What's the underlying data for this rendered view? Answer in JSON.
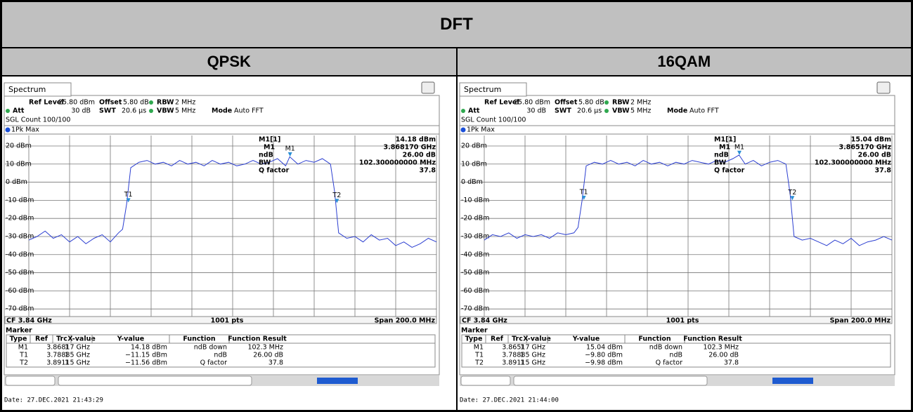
{
  "header": {
    "title": "DFT",
    "columns": [
      "QPSK",
      "16QAM"
    ]
  },
  "panels": [
    {
      "tab": "Spectrum",
      "settings": [
        [
          "Ref Level",
          "25.80 dBm"
        ],
        [
          "Offset",
          "5.80 dB"
        ],
        [
          "RBW",
          "2 MHz"
        ],
        [
          "Att",
          "30 dB"
        ],
        [
          "SWT",
          "20.6 µs"
        ],
        [
          "VBW",
          "5 MHz"
        ],
        [
          "Mode",
          "Auto FFT"
        ]
      ],
      "count": "SGL Count 100/100",
      "trace_label": "1Pk Max",
      "ylim": [
        -74.2,
        25.8
      ],
      "yticks": [
        {
          "value": 20,
          "label": "20 dBm"
        },
        {
          "value": 10,
          "label": "10 dBm"
        },
        {
          "value": 0,
          "label": "0 dBm"
        },
        {
          "value": -10,
          "label": "-10 dBm"
        },
        {
          "value": -20,
          "label": "-20 dBm"
        },
        {
          "value": -30,
          "label": "-30 dBm"
        },
        {
          "value": -40,
          "label": "-40 dBm"
        },
        {
          "value": -50,
          "label": "-50 dBm"
        },
        {
          "value": -60,
          "label": "-60 dBm"
        },
        {
          "value": -70,
          "label": "-70 dBm"
        }
      ],
      "xlim": [
        3.74,
        3.94
      ],
      "xticks": [
        3.74,
        3.76,
        3.78,
        3.8,
        3.82,
        3.84,
        3.86,
        3.88,
        3.9,
        3.92,
        3.94
      ],
      "trace": {
        "x": [
          3.74,
          3.744,
          3.748,
          3.752,
          3.756,
          3.76,
          3.764,
          3.768,
          3.772,
          3.776,
          3.78,
          3.784,
          3.786,
          3.788,
          3.79,
          3.794,
          3.798,
          3.802,
          3.806,
          3.81,
          3.814,
          3.818,
          3.822,
          3.826,
          3.83,
          3.834,
          3.838,
          3.842,
          3.846,
          3.85,
          3.854,
          3.858,
          3.862,
          3.866,
          3.868,
          3.872,
          3.876,
          3.88,
          3.884,
          3.888,
          3.89,
          3.892,
          3.896,
          3.9,
          3.904,
          3.908,
          3.912,
          3.916,
          3.92,
          3.924,
          3.928,
          3.932,
          3.936,
          3.94
        ],
        "values": [
          -32,
          -30,
          -27,
          -31,
          -29,
          -33,
          -30,
          -34,
          -31,
          -29,
          -33,
          -28,
          -26,
          -12,
          8,
          11,
          12,
          10,
          11,
          9,
          12,
          10,
          11,
          9,
          12,
          10,
          11,
          9,
          10,
          12,
          10,
          11,
          13,
          9,
          14,
          10,
          12,
          11,
          13,
          10,
          -5,
          -28,
          -31,
          -30,
          -33,
          -29,
          -32,
          -31,
          -35,
          -33,
          -36,
          -34,
          -31,
          -33
        ]
      },
      "markers": [
        {
          "label": "M1",
          "x": 3.86817,
          "y": 14.18
        },
        {
          "label": "T1",
          "x": 3.78885,
          "y": -11.15
        },
        {
          "label": "T2",
          "x": 3.89115,
          "y": -11.56
        }
      ],
      "marker_info": [
        [
          "M1[1]",
          "14.18 dBm"
        ],
        [
          "M1",
          "3.868170 GHz"
        ],
        [
          "ndB",
          "26.00 dB"
        ],
        [
          "BW",
          "102.300000000 MHz"
        ],
        [
          "Q factor",
          "37.8"
        ]
      ],
      "footer": [
        "CF 3.84 GHz",
        "1001 pts",
        "Span 200.0 MHz"
      ],
      "marker_table": {
        "title": "Marker",
        "headers": [
          "Type",
          "Ref",
          "Trc",
          "X-value",
          "Y-value",
          "Function",
          "Function Result"
        ],
        "rows": [
          [
            "M1",
            "",
            "1",
            "3.86817 GHz",
            "14.18 dBm",
            "ndB down",
            "102.3 MHz"
          ],
          [
            "T1",
            "",
            "1",
            "3.78885 GHz",
            "−11.15 dBm",
            "ndB",
            "26.00 dB"
          ],
          [
            "T2",
            "",
            "1",
            "3.89115 GHz",
            "−11.56 dBm",
            "Q factor",
            "37.8"
          ]
        ]
      },
      "date": "Date: 27.DEC.2021  21:43:29"
    },
    {
      "tab": "Spectrum",
      "settings": [
        [
          "Ref Level",
          "25.80 dBm"
        ],
        [
          "Offset",
          "5.80 dB"
        ],
        [
          "RBW",
          "2 MHz"
        ],
        [
          "Att",
          "30 dB"
        ],
        [
          "SWT",
          "20.6 µs"
        ],
        [
          "VBW",
          "5 MHz"
        ],
        [
          "Mode",
          "Auto FFT"
        ]
      ],
      "count": "SGL Count 100/100",
      "trace_label": "1Pk Max",
      "ylim": [
        -74.2,
        25.8
      ],
      "yticks": [
        {
          "value": 20,
          "label": "20 dBm"
        },
        {
          "value": 10,
          "label": "10 dBm"
        },
        {
          "value": 0,
          "label": "0 dBm"
        },
        {
          "value": -10,
          "label": "-10 dBm"
        },
        {
          "value": -20,
          "label": "-20 dBm"
        },
        {
          "value": -30,
          "label": "-30 dBm"
        },
        {
          "value": -40,
          "label": "-40 dBm"
        },
        {
          "value": -50,
          "label": "-50 dBm"
        },
        {
          "value": -60,
          "label": "-60 dBm"
        },
        {
          "value": -70,
          "label": "-70 dBm"
        }
      ],
      "xlim": [
        3.74,
        3.94
      ],
      "xticks": [
        3.74,
        3.76,
        3.78,
        3.8,
        3.82,
        3.84,
        3.86,
        3.88,
        3.9,
        3.92,
        3.94
      ],
      "trace": {
        "x": [
          3.74,
          3.744,
          3.748,
          3.752,
          3.756,
          3.76,
          3.764,
          3.768,
          3.772,
          3.776,
          3.78,
          3.784,
          3.786,
          3.788,
          3.79,
          3.794,
          3.798,
          3.802,
          3.806,
          3.81,
          3.814,
          3.818,
          3.822,
          3.826,
          3.83,
          3.834,
          3.838,
          3.842,
          3.846,
          3.85,
          3.854,
          3.858,
          3.862,
          3.865,
          3.868,
          3.872,
          3.876,
          3.88,
          3.884,
          3.888,
          3.89,
          3.892,
          3.896,
          3.9,
          3.904,
          3.908,
          3.912,
          3.916,
          3.92,
          3.924,
          3.928,
          3.932,
          3.936,
          3.94
        ],
        "values": [
          -32,
          -29,
          -30,
          -28,
          -31,
          -29,
          -30,
          -29,
          -31,
          -28,
          -29,
          -28,
          -25,
          -10,
          9,
          11,
          10,
          12,
          10,
          11,
          9,
          12,
          10,
          11,
          9,
          11,
          10,
          12,
          11,
          10,
          12,
          11,
          13,
          15,
          10,
          12,
          9,
          11,
          12,
          10,
          -6,
          -30,
          -32,
          -31,
          -33,
          -35,
          -32,
          -34,
          -31,
          -35,
          -33,
          -32,
          -30,
          -32
        ]
      },
      "markers": [
        {
          "label": "M1",
          "x": 3.86517,
          "y": 15.04
        },
        {
          "label": "T1",
          "x": 3.78885,
          "y": -9.8
        },
        {
          "label": "T2",
          "x": 3.89115,
          "y": -9.98
        }
      ],
      "marker_info": [
        [
          "M1[1]",
          "15.04 dBm"
        ],
        [
          "M1",
          "3.865170 GHz"
        ],
        [
          "ndB",
          "26.00 dB"
        ],
        [
          "BW",
          "102.300000000 MHz"
        ],
        [
          "Q factor",
          "37.8"
        ]
      ],
      "footer": [
        "CF 3.84 GHz",
        "1001 pts",
        "Span 200.0 MHz"
      ],
      "marker_table": {
        "title": "Marker",
        "headers": [
          "Type",
          "Ref",
          "Trc",
          "X-value",
          "Y-value",
          "Function",
          "Function Result"
        ],
        "rows": [
          [
            "M1",
            "",
            "1",
            "3.86517 GHz",
            "15.04 dBm",
            "ndB down",
            "102.3 MHz"
          ],
          [
            "T1",
            "",
            "1",
            "3.78885 GHz",
            "−9.80 dBm",
            "ndB",
            "26.00 dB"
          ],
          [
            "T2",
            "",
            "1",
            "3.89115 GHz",
            "−9.98 dBm",
            "Q factor",
            "37.8"
          ]
        ]
      },
      "date": "Date: 27.DEC.2021  21:44:00"
    }
  ]
}
